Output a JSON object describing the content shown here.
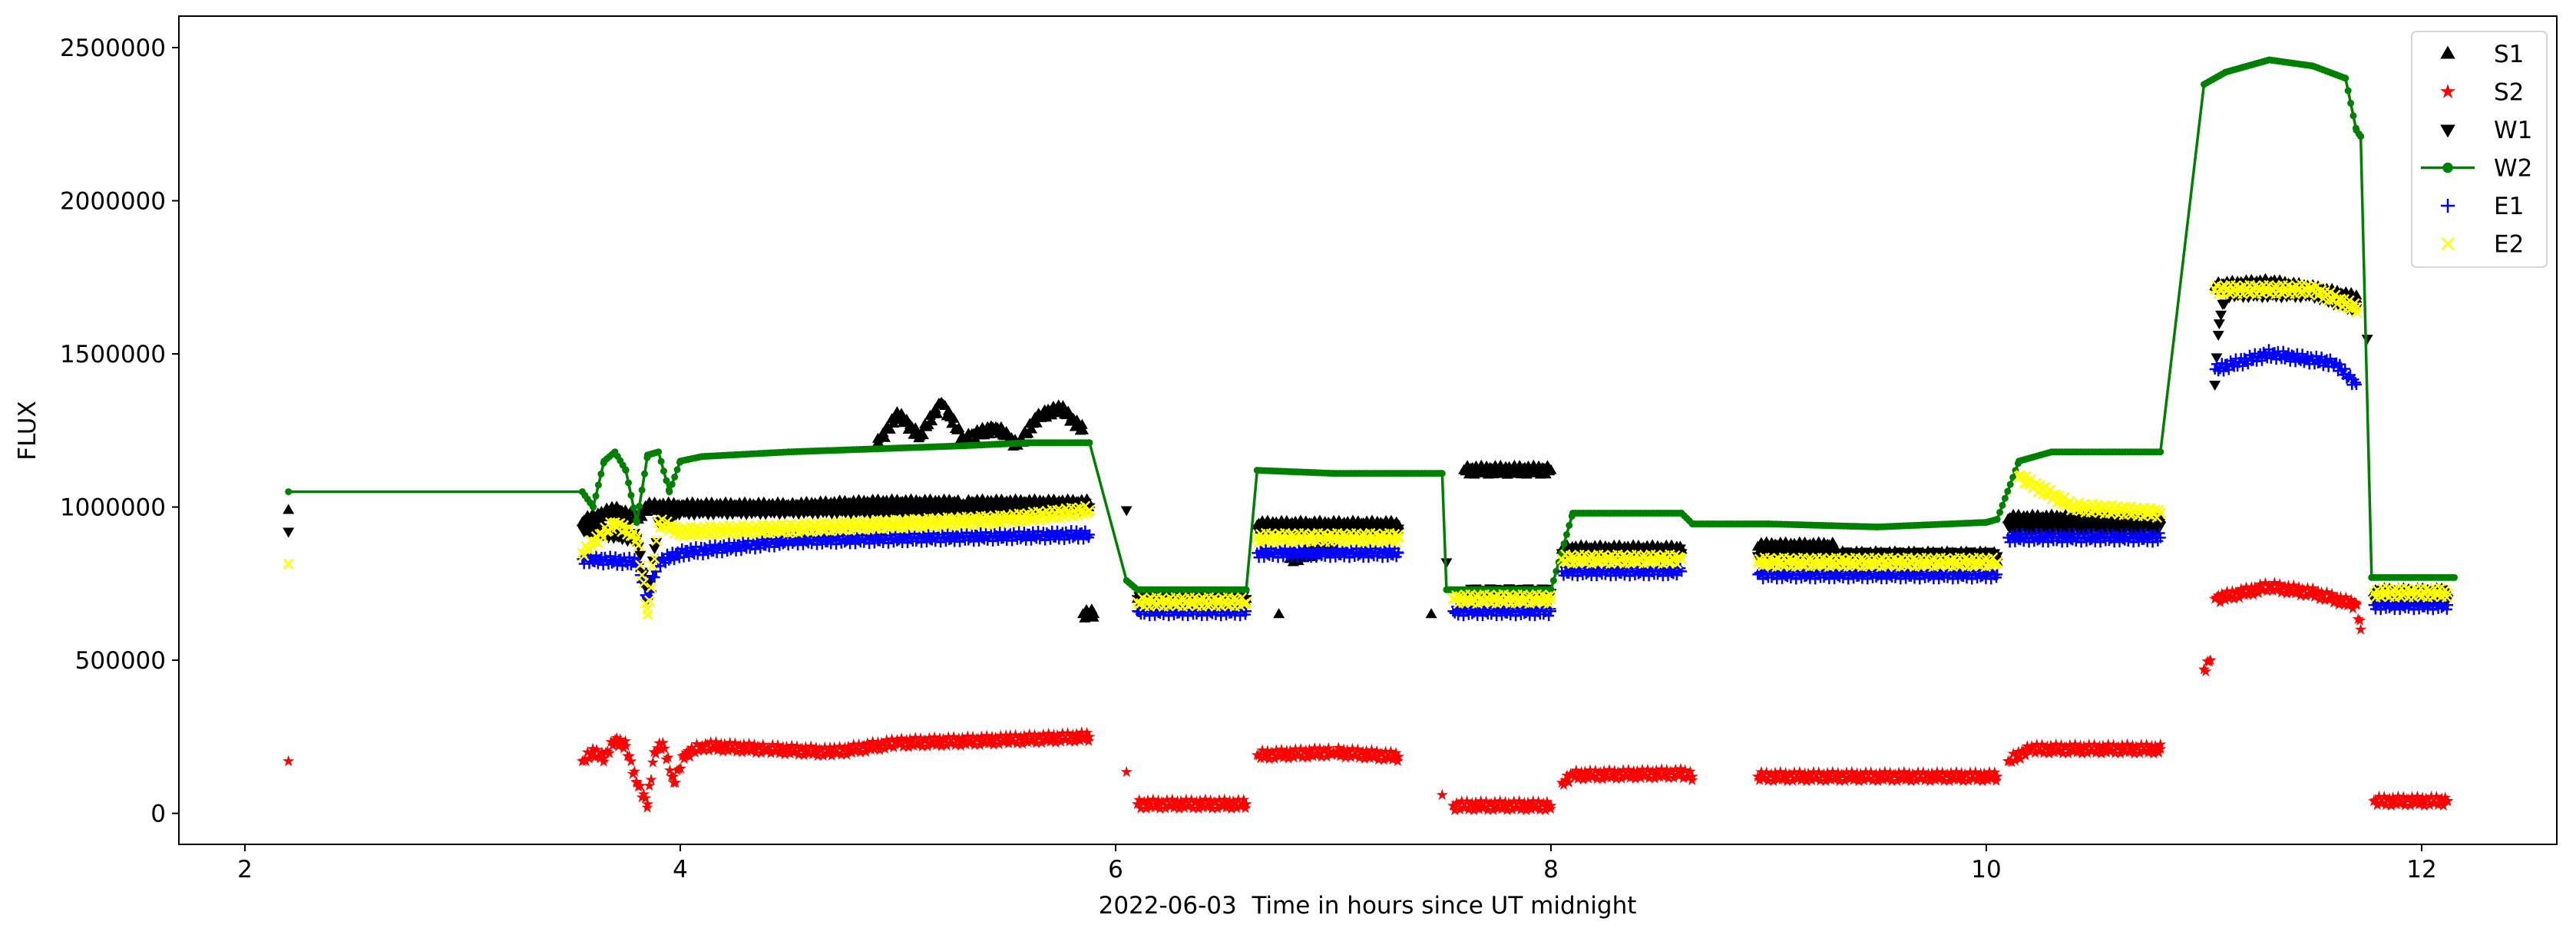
{
  "chart_data": {
    "type": "scatter",
    "title": "",
    "xlabel": "2022-06-03  Time in hours since UT midnight",
    "ylabel": "FLUX",
    "xlim": [
      1.7,
      12.65
    ],
    "ylim": [
      -100000,
      2570000
    ],
    "xticks": [
      2,
      4,
      6,
      8,
      10,
      12
    ],
    "yticks": [
      0,
      500000,
      1000000,
      1500000,
      2000000,
      2500000
    ],
    "grid": false,
    "legend_position": "top-right",
    "series": [
      {
        "name": "S1",
        "marker": "triangle-up",
        "color": "#000000",
        "line": false,
        "segments": [
          [
            [
              2.2,
              990000
            ]
          ],
          [
            [
              3.55,
              950000
            ],
            [
              3.7,
              990000
            ],
            [
              3.8,
              960000
            ],
            [
              3.85,
              1000000
            ],
            [
              4.0,
              1000000
            ],
            [
              4.5,
              1000000
            ],
            [
              4.9,
              1010000
            ],
            [
              5.3,
              1010000
            ],
            [
              5.88,
              1010000
            ]
          ],
          [
            [
              4.9,
              1200000
            ],
            [
              5.0,
              1300000
            ],
            [
              5.1,
              1230000
            ],
            [
              5.2,
              1340000
            ],
            [
              5.3,
              1220000
            ],
            [
              5.45,
              1260000
            ],
            [
              5.55,
              1200000
            ],
            [
              5.65,
              1300000
            ],
            [
              5.75,
              1320000
            ],
            [
              5.85,
              1250000
            ]
          ],
          [
            [
              5.85,
              650000
            ],
            [
              5.9,
              650000
            ]
          ],
          [
            [
              6.1,
              700000
            ],
            [
              6.6,
              700000
            ]
          ],
          [
            [
              6.65,
              940000
            ],
            [
              7.3,
              940000
            ]
          ],
          [
            [
              6.75,
              650000
            ]
          ],
          [
            [
              6.8,
              830000
            ],
            [
              7.0,
              870000
            ]
          ],
          [
            [
              7.45,
              650000
            ]
          ],
          [
            [
              7.6,
              1120000
            ],
            [
              8.0,
              1120000
            ]
          ],
          [
            [
              8.05,
              860000
            ],
            [
              8.6,
              860000
            ]
          ],
          [
            [
              8.95,
              870000
            ],
            [
              9.3,
              870000
            ]
          ],
          [
            [
              9.3,
              840000
            ],
            [
              10.05,
              840000
            ]
          ],
          [
            [
              10.05,
              820000
            ]
          ],
          [
            [
              10.1,
              960000
            ],
            [
              10.8,
              960000
            ]
          ],
          [
            [
              11.05,
              1720000
            ],
            [
              11.3,
              1730000
            ],
            [
              11.5,
              1710000
            ],
            [
              11.7,
              1680000
            ]
          ],
          [
            [
              11.78,
              720000
            ],
            [
              12.12,
              720000
            ]
          ]
        ]
      },
      {
        "name": "S2",
        "marker": "star",
        "color": "#ff0000",
        "line": false,
        "segments": [
          [
            [
              2.2,
              170000
            ]
          ],
          [
            [
              3.55,
              170000
            ],
            [
              3.6,
              200000
            ],
            [
              3.65,
              180000
            ],
            [
              3.7,
              240000
            ],
            [
              3.75,
              220000
            ],
            [
              3.8,
              100000
            ],
            [
              3.85,
              30000
            ],
            [
              3.88,
              200000
            ],
            [
              3.92,
              230000
            ],
            [
              3.97,
              100000
            ],
            [
              4.02,
              190000
            ],
            [
              4.1,
              220000
            ],
            [
              4.4,
              210000
            ],
            [
              4.7,
              200000
            ],
            [
              5.0,
              230000
            ],
            [
              5.5,
              240000
            ],
            [
              5.88,
              250000
            ]
          ],
          [
            [
              6.05,
              135000
            ]
          ],
          [
            [
              6.1,
              30000
            ],
            [
              6.6,
              30000
            ]
          ],
          [
            [
              6.65,
              190000
            ],
            [
              7.0,
              200000
            ],
            [
              7.3,
              185000
            ]
          ],
          [
            [
              7.5,
              60000
            ]
          ],
          [
            [
              7.55,
              25000
            ],
            [
              8.0,
              25000
            ]
          ],
          [
            [
              8.05,
              100000
            ],
            [
              8.1,
              125000
            ],
            [
              8.6,
              130000
            ],
            [
              8.65,
              120000
            ]
          ],
          [
            [
              8.95,
              120000
            ],
            [
              10.05,
              120000
            ]
          ],
          [
            [
              10.1,
              170000
            ],
            [
              10.2,
              210000
            ],
            [
              10.8,
              210000
            ]
          ],
          [
            [
              11.0,
              470000
            ],
            [
              11.03,
              500000
            ]
          ],
          [
            [
              11.05,
              700000
            ],
            [
              11.3,
              740000
            ],
            [
              11.5,
              720000
            ],
            [
              11.7,
              680000
            ],
            [
              11.72,
              600000
            ]
          ],
          [
            [
              11.78,
              40000
            ],
            [
              12.12,
              40000
            ]
          ]
        ]
      },
      {
        "name": "W1",
        "marker": "triangle-down",
        "color": "#000000",
        "line": false,
        "segments": [
          [
            [
              2.2,
              920000
            ]
          ],
          [
            [
              3.55,
              930000
            ],
            [
              3.8,
              900000
            ],
            [
              3.85,
              700000
            ],
            [
              3.9,
              950000
            ],
            [
              4.0,
              990000
            ],
            [
              5.88,
              1000000
            ]
          ],
          [
            [
              6.05,
              990000
            ]
          ],
          [
            [
              6.1,
              700000
            ],
            [
              6.6,
              700000
            ]
          ],
          [
            [
              6.65,
              930000
            ],
            [
              7.3,
              930000
            ]
          ],
          [
            [
              7.52,
              820000
            ]
          ],
          [
            [
              7.6,
              720000
            ],
            [
              8.0,
              720000
            ]
          ],
          [
            [
              8.05,
              850000
            ],
            [
              8.6,
              850000
            ]
          ],
          [
            [
              8.95,
              840000
            ],
            [
              10.05,
              840000
            ]
          ],
          [
            [
              10.1,
              940000
            ],
            [
              10.8,
              940000
            ]
          ],
          [
            [
              11.05,
              1400000
            ],
            [
              11.07,
              1600000
            ],
            [
              11.1,
              1700000
            ],
            [
              11.5,
              1700000
            ],
            [
              11.7,
              1650000
            ]
          ],
          [
            [
              11.75,
              1550000
            ]
          ],
          [
            [
              11.78,
              700000
            ],
            [
              12.12,
              700000
            ]
          ]
        ]
      },
      {
        "name": "W2",
        "marker": "dot",
        "color": "#008000",
        "line": true,
        "segments": [
          [
            [
              2.2,
              1050000
            ],
            [
              3.55,
              1050000
            ],
            [
              3.6,
              1000000
            ],
            [
              3.65,
              1150000
            ],
            [
              3.7,
              1180000
            ],
            [
              3.75,
              1120000
            ],
            [
              3.8,
              950000
            ],
            [
              3.85,
              1170000
            ],
            [
              3.9,
              1180000
            ],
            [
              3.95,
              1050000
            ],
            [
              4.0,
              1150000
            ],
            [
              4.1,
              1165000
            ],
            [
              4.5,
              1180000
            ],
            [
              4.9,
              1190000
            ],
            [
              5.3,
              1200000
            ],
            [
              5.6,
              1210000
            ],
            [
              5.88,
              1210000
            ],
            [
              6.05,
              760000
            ],
            [
              6.1,
              730000
            ],
            [
              6.6,
              730000
            ],
            [
              6.65,
              1120000
            ],
            [
              7.0,
              1110000
            ],
            [
              7.5,
              1110000
            ],
            [
              7.52,
              730000
            ],
            [
              8.0,
              730000
            ],
            [
              8.1,
              980000
            ],
            [
              8.6,
              980000
            ],
            [
              8.65,
              945000
            ],
            [
              9.0,
              945000
            ],
            [
              9.5,
              935000
            ],
            [
              10.0,
              950000
            ],
            [
              10.05,
              960000
            ],
            [
              10.15,
              1150000
            ],
            [
              10.3,
              1180000
            ],
            [
              10.8,
              1180000
            ],
            [
              11.0,
              2380000
            ],
            [
              11.1,
              2420000
            ],
            [
              11.3,
              2460000
            ],
            [
              11.5,
              2440000
            ],
            [
              11.65,
              2400000
            ],
            [
              11.7,
              2230000
            ],
            [
              11.72,
              2210000
            ],
            [
              11.77,
              770000
            ],
            [
              12.15,
              770000
            ]
          ]
        ]
      },
      {
        "name": "E1",
        "marker": "plus",
        "color": "#0000ff",
        "line": false,
        "segments": [
          [
            [
              3.55,
              830000
            ],
            [
              3.8,
              820000
            ],
            [
              3.85,
              700000
            ],
            [
              3.9,
              820000
            ],
            [
              4.0,
              850000
            ],
            [
              4.5,
              890000
            ],
            [
              5.88,
              910000
            ]
          ],
          [
            [
              6.1,
              660000
            ],
            [
              6.6,
              660000
            ]
          ],
          [
            [
              6.65,
              850000
            ],
            [
              7.3,
              850000
            ]
          ],
          [
            [
              7.55,
              660000
            ],
            [
              8.0,
              660000
            ]
          ],
          [
            [
              8.05,
              790000
            ],
            [
              8.6,
              790000
            ]
          ],
          [
            [
              8.95,
              780000
            ],
            [
              10.05,
              780000
            ]
          ],
          [
            [
              10.1,
              900000
            ],
            [
              10.8,
              900000
            ]
          ],
          [
            [
              11.05,
              1450000
            ],
            [
              11.3,
              1500000
            ],
            [
              11.6,
              1470000
            ],
            [
              11.7,
              1400000
            ]
          ],
          [
            [
              11.78,
              680000
            ],
            [
              12.12,
              680000
            ]
          ]
        ]
      },
      {
        "name": "E2",
        "marker": "x",
        "color": "#ffff00",
        "line": false,
        "segments": [
          [
            [
              2.2,
              815000
            ]
          ],
          [
            [
              3.55,
              850000
            ],
            [
              3.7,
              950000
            ],
            [
              3.8,
              900000
            ],
            [
              3.85,
              650000
            ],
            [
              3.9,
              950000
            ],
            [
              4.0,
              920000
            ],
            [
              4.5,
              930000
            ],
            [
              5.5,
              960000
            ],
            [
              5.88,
              990000
            ]
          ],
          [
            [
              6.1,
              690000
            ],
            [
              6.6,
              690000
            ]
          ],
          [
            [
              6.65,
              900000
            ],
            [
              7.3,
              900000
            ]
          ],
          [
            [
              7.55,
              700000
            ],
            [
              8.0,
              700000
            ]
          ],
          [
            [
              8.05,
              830000
            ],
            [
              8.6,
              830000
            ]
          ],
          [
            [
              8.95,
              820000
            ],
            [
              10.05,
              820000
            ]
          ],
          [
            [
              10.15,
              1100000
            ],
            [
              10.4,
              1000000
            ],
            [
              10.8,
              980000
            ]
          ],
          [
            [
              11.05,
              1710000
            ],
            [
              11.5,
              1710000
            ],
            [
              11.7,
              1650000
            ]
          ],
          [
            [
              11.78,
              720000
            ],
            [
              12.12,
              720000
            ]
          ]
        ]
      }
    ]
  }
}
